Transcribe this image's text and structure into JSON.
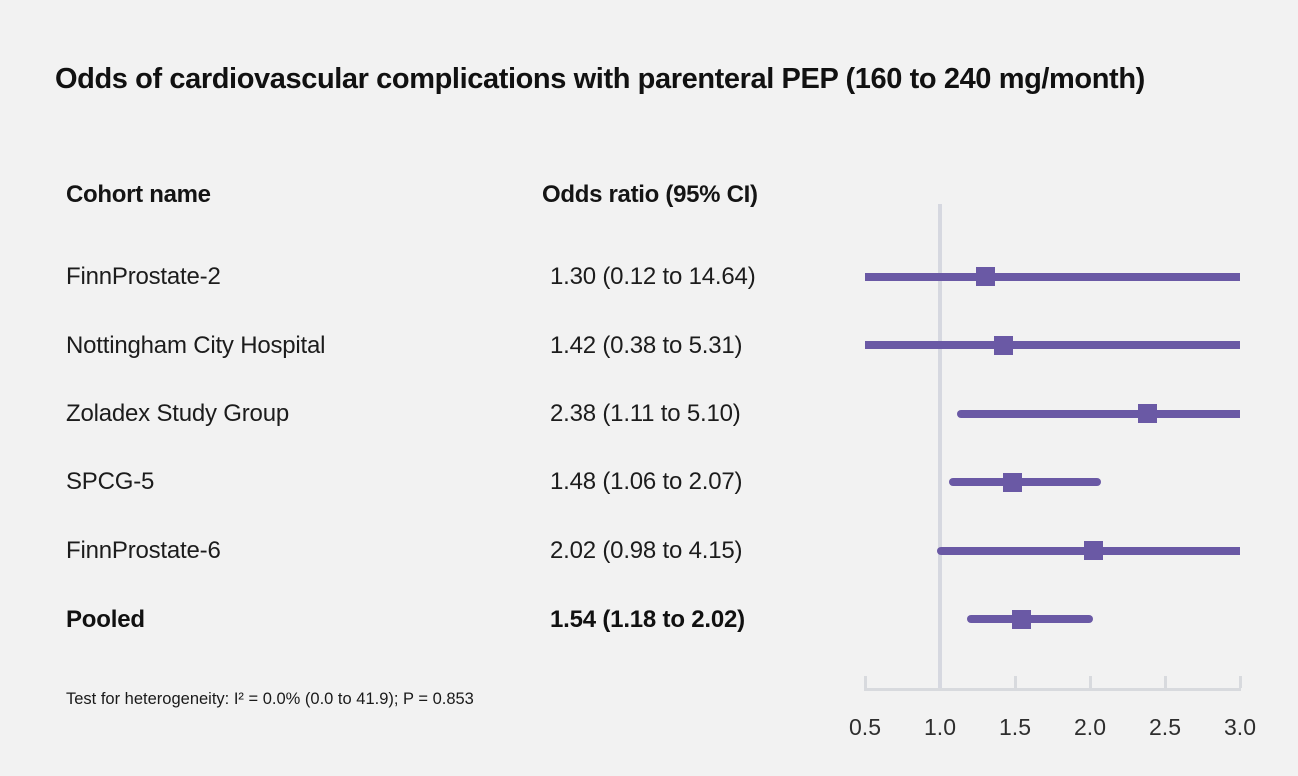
{
  "title": "Odds of cardiovascular complications with parenteral PEP (160 to 240 mg/month)",
  "table": {
    "col1_header": "Cohort name",
    "col2_header": "Odds ratio (95% CI)",
    "rows": [
      {
        "name": "FinnProstate-2",
        "or_label": "1.30 (0.12 to 14.64)"
      },
      {
        "name": "Nottingham City Hospital",
        "or_label": "1.42 (0.38 to 5.31)"
      },
      {
        "name": "Zoladex Study Group",
        "or_label": "2.38 (1.11 to 5.10)"
      },
      {
        "name": "SPCG-5",
        "or_label": "1.48 (1.06 to 2.07)"
      },
      {
        "name": "FinnProstate-6",
        "or_label": "2.02 (0.98 to 4.15)"
      },
      {
        "name": "Pooled",
        "or_label": "1.54 (1.18 to 2.02)"
      }
    ]
  },
  "footnote": "Test for heterogeneity: I² = 0.0% (0.0 to 41.9); P = 0.853",
  "chart_data": {
    "type": "forest-plot",
    "title": "Odds of cardiovascular complications with parenteral PEP (160 to 240 mg/month)",
    "series": [
      {
        "name": "FinnProstate-2",
        "or": 1.3,
        "ci_low": 0.12,
        "ci_high": 14.64,
        "pooled": false
      },
      {
        "name": "Nottingham City Hospital",
        "or": 1.42,
        "ci_low": 0.38,
        "ci_high": 5.31,
        "pooled": false
      },
      {
        "name": "Zoladex Study Group",
        "or": 2.38,
        "ci_low": 1.11,
        "ci_high": 5.1,
        "pooled": false
      },
      {
        "name": "SPCG-5",
        "or": 1.48,
        "ci_low": 1.06,
        "ci_high": 2.07,
        "pooled": false
      },
      {
        "name": "FinnProstate-6",
        "or": 2.02,
        "ci_low": 0.98,
        "ci_high": 4.15,
        "pooled": false
      },
      {
        "name": "Pooled",
        "or": 1.54,
        "ci_low": 1.18,
        "ci_high": 2.02,
        "pooled": true
      }
    ],
    "x_range": [
      0.5,
      3.0
    ],
    "tick_values": [
      0.5,
      1.0,
      1.5,
      2.0,
      2.5,
      3.0
    ],
    "tick_labels": [
      "0.5",
      "1.0",
      "1.5",
      "2.0",
      "2.5",
      "3.0"
    ],
    "reference_line": 1.0,
    "xlabel": "",
    "ylabel": "",
    "legend": "none",
    "grid": "off",
    "colors": {
      "marker": "#6a59a5",
      "ci_line": "#6a59a5",
      "axis": "#d8dade",
      "reference": "#d6d8e0",
      "background": "#f2f2f2"
    },
    "heterogeneity_note": "Test for heterogeneity: I² = 0.0% (0.0 to 41.9); P = 0.853"
  }
}
